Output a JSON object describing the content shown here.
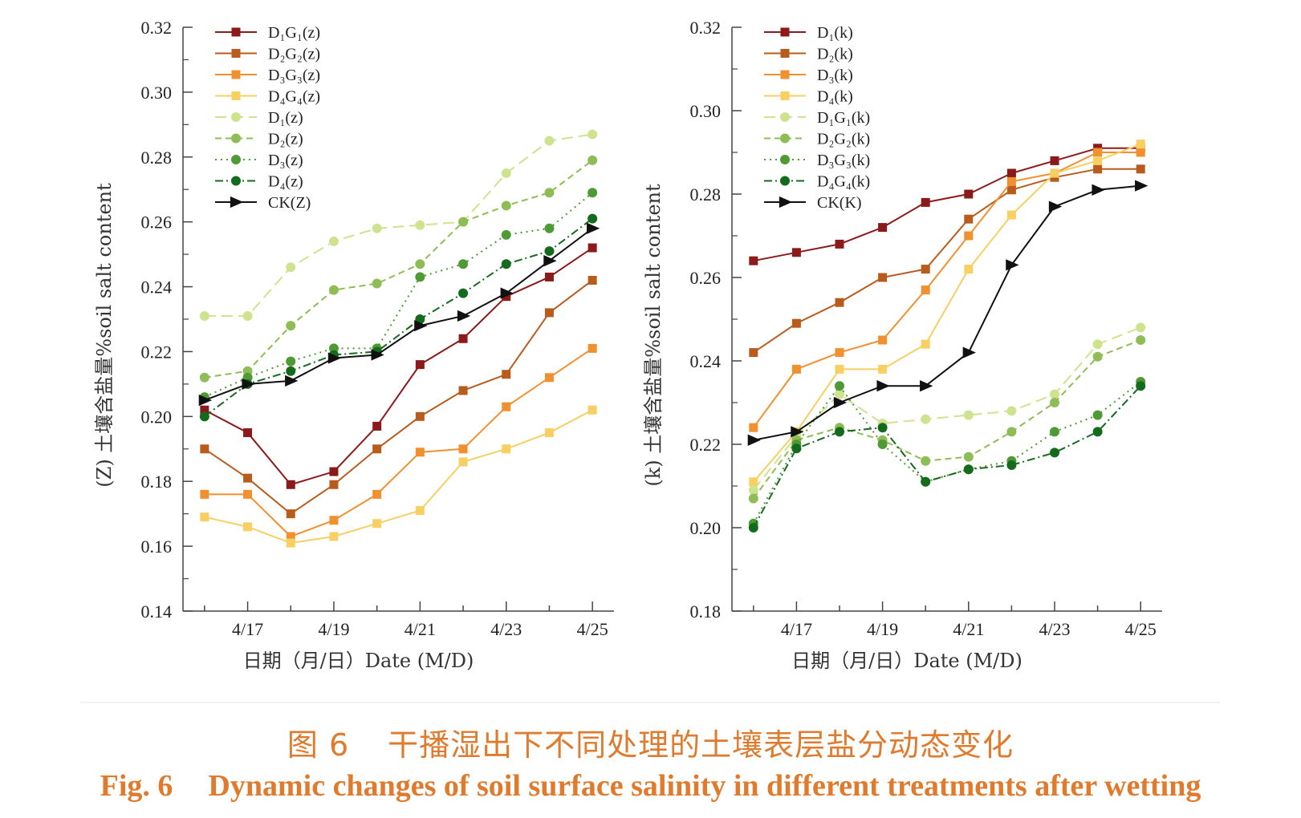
{
  "caption": {
    "cn_fig": "图 6",
    "cn_text": "干播湿出下不同处理的土壤表层盐分动态变化",
    "en_fig": "Fig. 6",
    "en_text": "Dynamic changes of soil surface salinity in different treatments after wetting"
  },
  "chart_data": [
    {
      "type": "line",
      "xlabel": "日期（月/日）Date (M/D)",
      "ylabel": "(Z) 土壤含盐量%soil salt content",
      "x": [
        16,
        17,
        18,
        19,
        20,
        21,
        22,
        23,
        24,
        25
      ],
      "xticks": [
        17,
        19,
        21,
        23,
        25
      ],
      "xtick_labels": [
        "4/17",
        "4/19",
        "4/21",
        "4/23",
        "4/25"
      ],
      "xlim": [
        15.5,
        25.5
      ],
      "ylim": [
        0.14,
        0.32
      ],
      "yticks": [
        "0.14",
        "0.16",
        "0.18",
        "0.20",
        "0.22",
        "0.24",
        "0.26",
        "0.28",
        "0.30",
        "0.32"
      ],
      "legend_position": "top-left",
      "grid": false,
      "series": [
        {
          "name": "D₁G₁(z)",
          "color": "#8b1a1a",
          "marker": "square",
          "dash": "solid",
          "values": [
            0.202,
            0.195,
            0.179,
            0.183,
            0.197,
            0.216,
            0.224,
            0.237,
            0.243,
            0.252
          ]
        },
        {
          "name": "D₂G₂(z)",
          "color": "#b85c1e",
          "marker": "square",
          "dash": "solid",
          "values": [
            0.19,
            0.181,
            0.17,
            0.179,
            0.19,
            0.2,
            0.208,
            0.213,
            0.232,
            0.242
          ]
        },
        {
          "name": "D₃G₃(z)",
          "color": "#f0902e",
          "marker": "square",
          "dash": "solid",
          "values": [
            0.176,
            0.176,
            0.163,
            0.168,
            0.176,
            0.189,
            0.19,
            0.203,
            0.212,
            0.221
          ]
        },
        {
          "name": "D₄G₄(z)",
          "color": "#f7cf62",
          "marker": "square",
          "dash": "solid",
          "values": [
            0.169,
            0.166,
            0.161,
            0.163,
            0.167,
            0.171,
            0.186,
            0.19,
            0.195,
            0.202
          ]
        },
        {
          "name": "D₁(z)",
          "color": "#cfe38e",
          "marker": "circle",
          "dash": "longdash",
          "values": [
            0.231,
            0.231,
            0.246,
            0.254,
            0.258,
            0.259,
            0.26,
            0.275,
            0.285,
            0.287
          ]
        },
        {
          "name": "D₂(z)",
          "color": "#8fbd55",
          "marker": "circle",
          "dash": "dash",
          "values": [
            0.212,
            0.214,
            0.228,
            0.239,
            0.241,
            0.247,
            0.26,
            0.265,
            0.269,
            0.279
          ]
        },
        {
          "name": "D₃(z)",
          "color": "#4f9a35",
          "marker": "circle",
          "dash": "dot",
          "values": [
            0.206,
            0.212,
            0.217,
            0.221,
            0.221,
            0.243,
            0.247,
            0.256,
            0.258,
            0.269
          ]
        },
        {
          "name": "D₄(z)",
          "color": "#146b1e",
          "marker": "circle",
          "dash": "dashdot",
          "values": [
            0.2,
            0.21,
            0.214,
            0.219,
            0.22,
            0.23,
            0.238,
            0.247,
            0.251,
            0.261
          ]
        },
        {
          "name": "CK(Z)",
          "color": "#111111",
          "marker": "triangle",
          "dash": "solid",
          "values": [
            0.205,
            0.21,
            0.211,
            0.218,
            0.219,
            0.228,
            0.231,
            0.238,
            0.248,
            0.258
          ]
        }
      ]
    },
    {
      "type": "line",
      "xlabel": "日期（月/日）Date (M/D)",
      "ylabel": "(k) 土壤含盐量%soil salt content",
      "x": [
        16,
        17,
        18,
        19,
        20,
        21,
        22,
        23,
        24,
        25
      ],
      "xticks": [
        17,
        19,
        21,
        23,
        25
      ],
      "xtick_labels": [
        "4/17",
        "4/19",
        "4/21",
        "4/23",
        "4/25"
      ],
      "xlim": [
        15.5,
        25.5
      ],
      "ylim": [
        0.18,
        0.32
      ],
      "yticks": [
        "0.18",
        "0.20",
        "0.22",
        "0.24",
        "0.26",
        "0.28",
        "0.30",
        "0.32"
      ],
      "legend_position": "top-left",
      "grid": false,
      "series": [
        {
          "name": "D₁(k)",
          "color": "#8b1a1a",
          "marker": "square",
          "dash": "solid",
          "values": [
            0.264,
            0.266,
            0.268,
            0.272,
            0.278,
            0.28,
            0.285,
            0.288,
            0.291,
            0.291
          ]
        },
        {
          "name": "D₂(k)",
          "color": "#b85c1e",
          "marker": "square",
          "dash": "solid",
          "values": [
            0.242,
            0.249,
            0.254,
            0.26,
            0.262,
            0.274,
            0.281,
            0.284,
            0.286,
            0.286
          ]
        },
        {
          "name": "D₃(k)",
          "color": "#f0902e",
          "marker": "square",
          "dash": "solid",
          "values": [
            0.224,
            0.238,
            0.242,
            0.245,
            0.257,
            0.27,
            0.283,
            0.285,
            0.29,
            0.29
          ]
        },
        {
          "name": "D₄(k)",
          "color": "#f7cf62",
          "marker": "square",
          "dash": "solid",
          "values": [
            0.211,
            0.223,
            0.238,
            0.238,
            0.244,
            0.262,
            0.275,
            0.285,
            0.288,
            0.292
          ]
        },
        {
          "name": "D₁G₁(k)",
          "color": "#cfe38e",
          "marker": "circle",
          "dash": "longdash",
          "values": [
            0.209,
            0.222,
            0.232,
            0.225,
            0.226,
            0.227,
            0.228,
            0.232,
            0.244,
            0.248
          ]
        },
        {
          "name": "D₂G₂(k)",
          "color": "#8fbd55",
          "marker": "circle",
          "dash": "dash",
          "values": [
            0.207,
            0.221,
            0.224,
            0.221,
            0.216,
            0.217,
            0.223,
            0.23,
            0.241,
            0.245
          ]
        },
        {
          "name": "D₃G₃(k)",
          "color": "#4f9a35",
          "marker": "circle",
          "dash": "dot",
          "values": [
            0.201,
            0.22,
            0.234,
            0.22,
            0.211,
            0.214,
            0.216,
            0.223,
            0.227,
            0.235
          ]
        },
        {
          "name": "D₄G₄(k)",
          "color": "#146b1e",
          "marker": "circle",
          "dash": "dashdot",
          "values": [
            0.2,
            0.219,
            0.223,
            0.224,
            0.211,
            0.214,
            0.215,
            0.218,
            0.223,
            0.234
          ]
        },
        {
          "name": "CK(K)",
          "color": "#111111",
          "marker": "triangle",
          "dash": "solid",
          "values": [
            0.221,
            0.223,
            0.23,
            0.234,
            0.234,
            0.242,
            0.263,
            0.277,
            0.281,
            0.282
          ]
        }
      ]
    }
  ]
}
